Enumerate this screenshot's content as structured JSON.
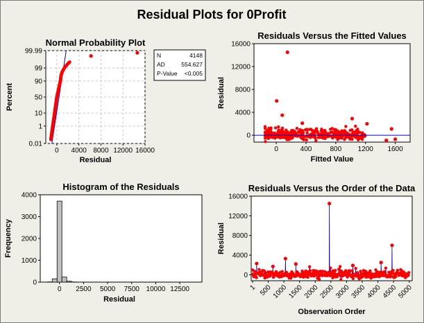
{
  "title": "Residual Plots for 0Profit",
  "colors": {
    "point": "#ff0000",
    "line": "#0000c8",
    "bar": "#c0c0c0",
    "background": "#f0efe7"
  },
  "chart_data": [
    {
      "type": "scatter",
      "title": "Normal Probability Plot",
      "xlabel": "Residual",
      "ylabel": "Percent",
      "xlim": [
        -2000,
        16000
      ],
      "x_ticks": [
        "0",
        "4000",
        "8000",
        "12000",
        "16000"
      ],
      "y_ticks": [
        "0.01",
        "1",
        "10",
        "50",
        "90",
        "99",
        "99.99"
      ],
      "grid": true,
      "stats_box": {
        "rows": [
          [
            "N",
            "4148"
          ],
          [
            "AD",
            "554.627"
          ],
          [
            "P-Value",
            "<0.005"
          ]
        ]
      },
      "points_outliers": [
        {
          "x": 6200,
          "p": 99.95
        },
        {
          "x": 14600,
          "p": 99.98
        }
      ]
    },
    {
      "type": "scatter",
      "title": "Residuals Versus the Fitted Values",
      "xlabel": "Fitted Value",
      "ylabel": "Residual",
      "xlim": [
        -300,
        1800
      ],
      "ylim": [
        -1200,
        16000
      ],
      "x_ticks": [
        "0",
        "400",
        "800",
        "1200",
        "1600"
      ],
      "y_ticks": [
        "0",
        "4000",
        "8000",
        "12000",
        "16000"
      ],
      "reference_line": 0,
      "outliers": [
        {
          "x": 150,
          "y": 14500
        },
        {
          "x": 5,
          "y": 6000
        },
        {
          "x": 80,
          "y": 3500
        },
        {
          "x": 350,
          "y": 2100
        },
        {
          "x": 1020,
          "y": 2900
        },
        {
          "x": 1220,
          "y": 2000
        },
        {
          "x": 1480,
          "y": -900
        },
        {
          "x": 1600,
          "y": -700
        },
        {
          "x": 1550,
          "y": 1100
        }
      ]
    },
    {
      "type": "bar",
      "title": "Histogram of the Residuals",
      "xlabel": "Residual",
      "ylabel": "Frequency",
      "bin_width": 500,
      "bin_start": -1250,
      "values": [
        10,
        150,
        3710,
        230,
        40,
        8,
        0,
        0,
        0,
        0,
        0,
        0,
        0,
        0,
        0,
        0,
        0,
        0,
        0,
        0,
        0,
        0,
        0,
        0,
        0,
        0,
        0,
        0,
        0,
        1
      ],
      "xlim": [
        -2000,
        14800
      ],
      "ylim": [
        0,
        4000
      ],
      "x_ticks": [
        "0",
        "2500",
        "5000",
        "7500",
        "10000",
        "12500"
      ],
      "y_ticks": [
        "0",
        "1000",
        "2000",
        "3000",
        "4000"
      ]
    },
    {
      "type": "line",
      "title": "Residuals Versus the Order of the Data",
      "xlabel": "Observation Order",
      "ylabel": "Residual",
      "xlim": [
        1,
        5050
      ],
      "ylim": [
        -1200,
        16000
      ],
      "x_ticks": [
        "1",
        "500",
        "1000",
        "1500",
        "2000",
        "2500",
        "3000",
        "3500",
        "4000",
        "4500",
        "5000"
      ],
      "y_ticks": [
        "0",
        "4000",
        "8000",
        "12000",
        "16000"
      ],
      "spikes": [
        {
          "x": 2450,
          "y": 14500
        },
        {
          "x": 4450,
          "y": 6000
        },
        {
          "x": 1050,
          "y": 3300
        },
        {
          "x": 4100,
          "y": 2500
        },
        {
          "x": 130,
          "y": 2300
        },
        {
          "x": 1380,
          "y": 2200
        },
        {
          "x": 3200,
          "y": 1900
        },
        {
          "x": 650,
          "y": 1700
        }
      ]
    }
  ]
}
